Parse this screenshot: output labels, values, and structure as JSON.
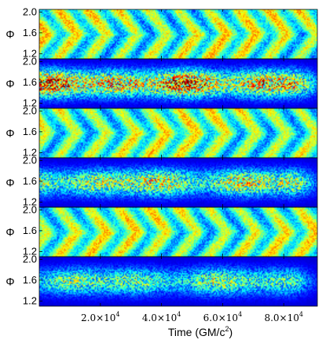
{
  "chart_data": {
    "type": "heatmap",
    "colormap": "jet",
    "xlabel": "Time (GM/c",
    "xlabel_sup": "2",
    "xlabel_close": ")",
    "xlim": [
      0,
      91000
    ],
    "x_ticks": [
      {
        "value": 20000,
        "mantissa": "2.0",
        "times": "×10",
        "exp": "4"
      },
      {
        "value": 40000,
        "mantissa": "4.0",
        "times": "×10",
        "exp": "4"
      },
      {
        "value": 60000,
        "mantissa": "6.0",
        "times": "×10",
        "exp": "4"
      },
      {
        "value": 80000,
        "mantissa": "8.0",
        "times": "×10",
        "exp": "4"
      }
    ],
    "ylabel": "Φ",
    "ylim": [
      1.1,
      2.05
    ],
    "y_ticks": [
      "2.0",
      "1.6",
      "1.2"
    ],
    "y_tick_values": [
      2.0,
      1.6,
      1.2
    ],
    "shared_x_axis": true,
    "panels": [
      {
        "pattern": "smooth",
        "intensity": 0.55
      },
      {
        "pattern": "turbulent",
        "intensity": 1.0
      },
      {
        "pattern": "smooth",
        "intensity": 0.45
      },
      {
        "pattern": "turbulent",
        "intensity": 0.75
      },
      {
        "pattern": "smooth",
        "intensity": 0.45
      },
      {
        "pattern": "turbulent",
        "intensity": 0.6
      }
    ]
  }
}
